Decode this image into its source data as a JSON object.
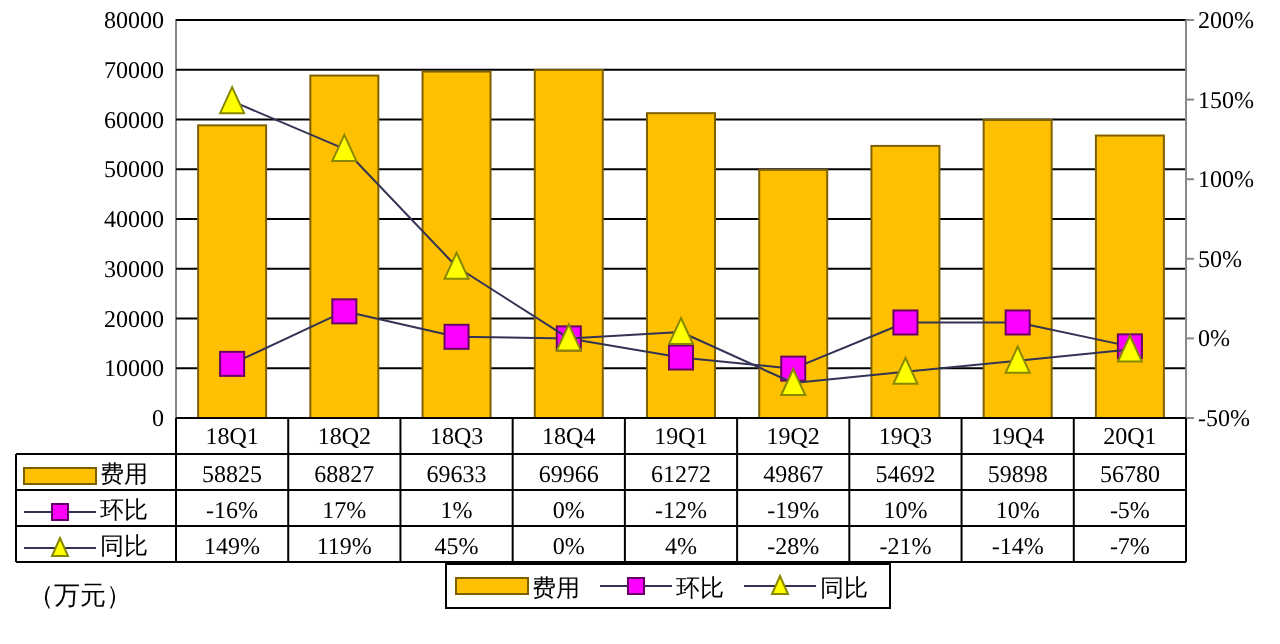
{
  "chart_data": {
    "type": "bar",
    "categories": [
      "18Q1",
      "18Q2",
      "18Q3",
      "18Q4",
      "19Q1",
      "19Q2",
      "19Q3",
      "19Q4",
      "20Q1"
    ],
    "series": [
      {
        "name": "费用",
        "color": "#ffc000",
        "values": [
          58825,
          68827,
          69633,
          69966,
          61272,
          49867,
          54692,
          59898,
          56780
        ],
        "value_labels": [
          "58825",
          "68827",
          "69633",
          "69966",
          "61272",
          "49867",
          "54692",
          "59898",
          "56780"
        ]
      },
      {
        "name": "环比",
        "type": "line",
        "axis": "y2",
        "marker": "square",
        "color": "#ff00ff",
        "values": [
          -16,
          17,
          1,
          0,
          -12,
          -19,
          10,
          10,
          -5
        ],
        "value_labels": [
          "-16%",
          "17%",
          "1%",
          "0%",
          "-12%",
          "-19%",
          "10%",
          "10%",
          "-5%"
        ]
      },
      {
        "name": "同比",
        "type": "line",
        "axis": "y2",
        "marker": "triangle",
        "color": "#ffff00",
        "values": [
          149,
          119,
          45,
          0,
          4,
          -28,
          -21,
          -14,
          -7
        ],
        "value_labels": [
          "149%",
          "119%",
          "45%",
          "0%",
          "4%",
          "-28%",
          "-21%",
          "-14%",
          "-7%"
        ]
      }
    ],
    "ylim": [
      0,
      80000
    ],
    "yticks": [
      0,
      10000,
      20000,
      30000,
      40000,
      50000,
      60000,
      70000,
      80000
    ],
    "y2lim": [
      -50,
      200
    ],
    "y2ticks": [
      {
        "value": -50,
        "label": "-50%"
      },
      {
        "value": 0,
        "label": "0%"
      },
      {
        "value": 50,
        "label": "50%"
      },
      {
        "value": 100,
        "label": "100%"
      },
      {
        "value": 150,
        "label": "150%"
      },
      {
        "value": 200,
        "label": "200%"
      }
    ],
    "grid": "y",
    "legend": "bottom",
    "annotations": [
      "（万元）"
    ]
  }
}
